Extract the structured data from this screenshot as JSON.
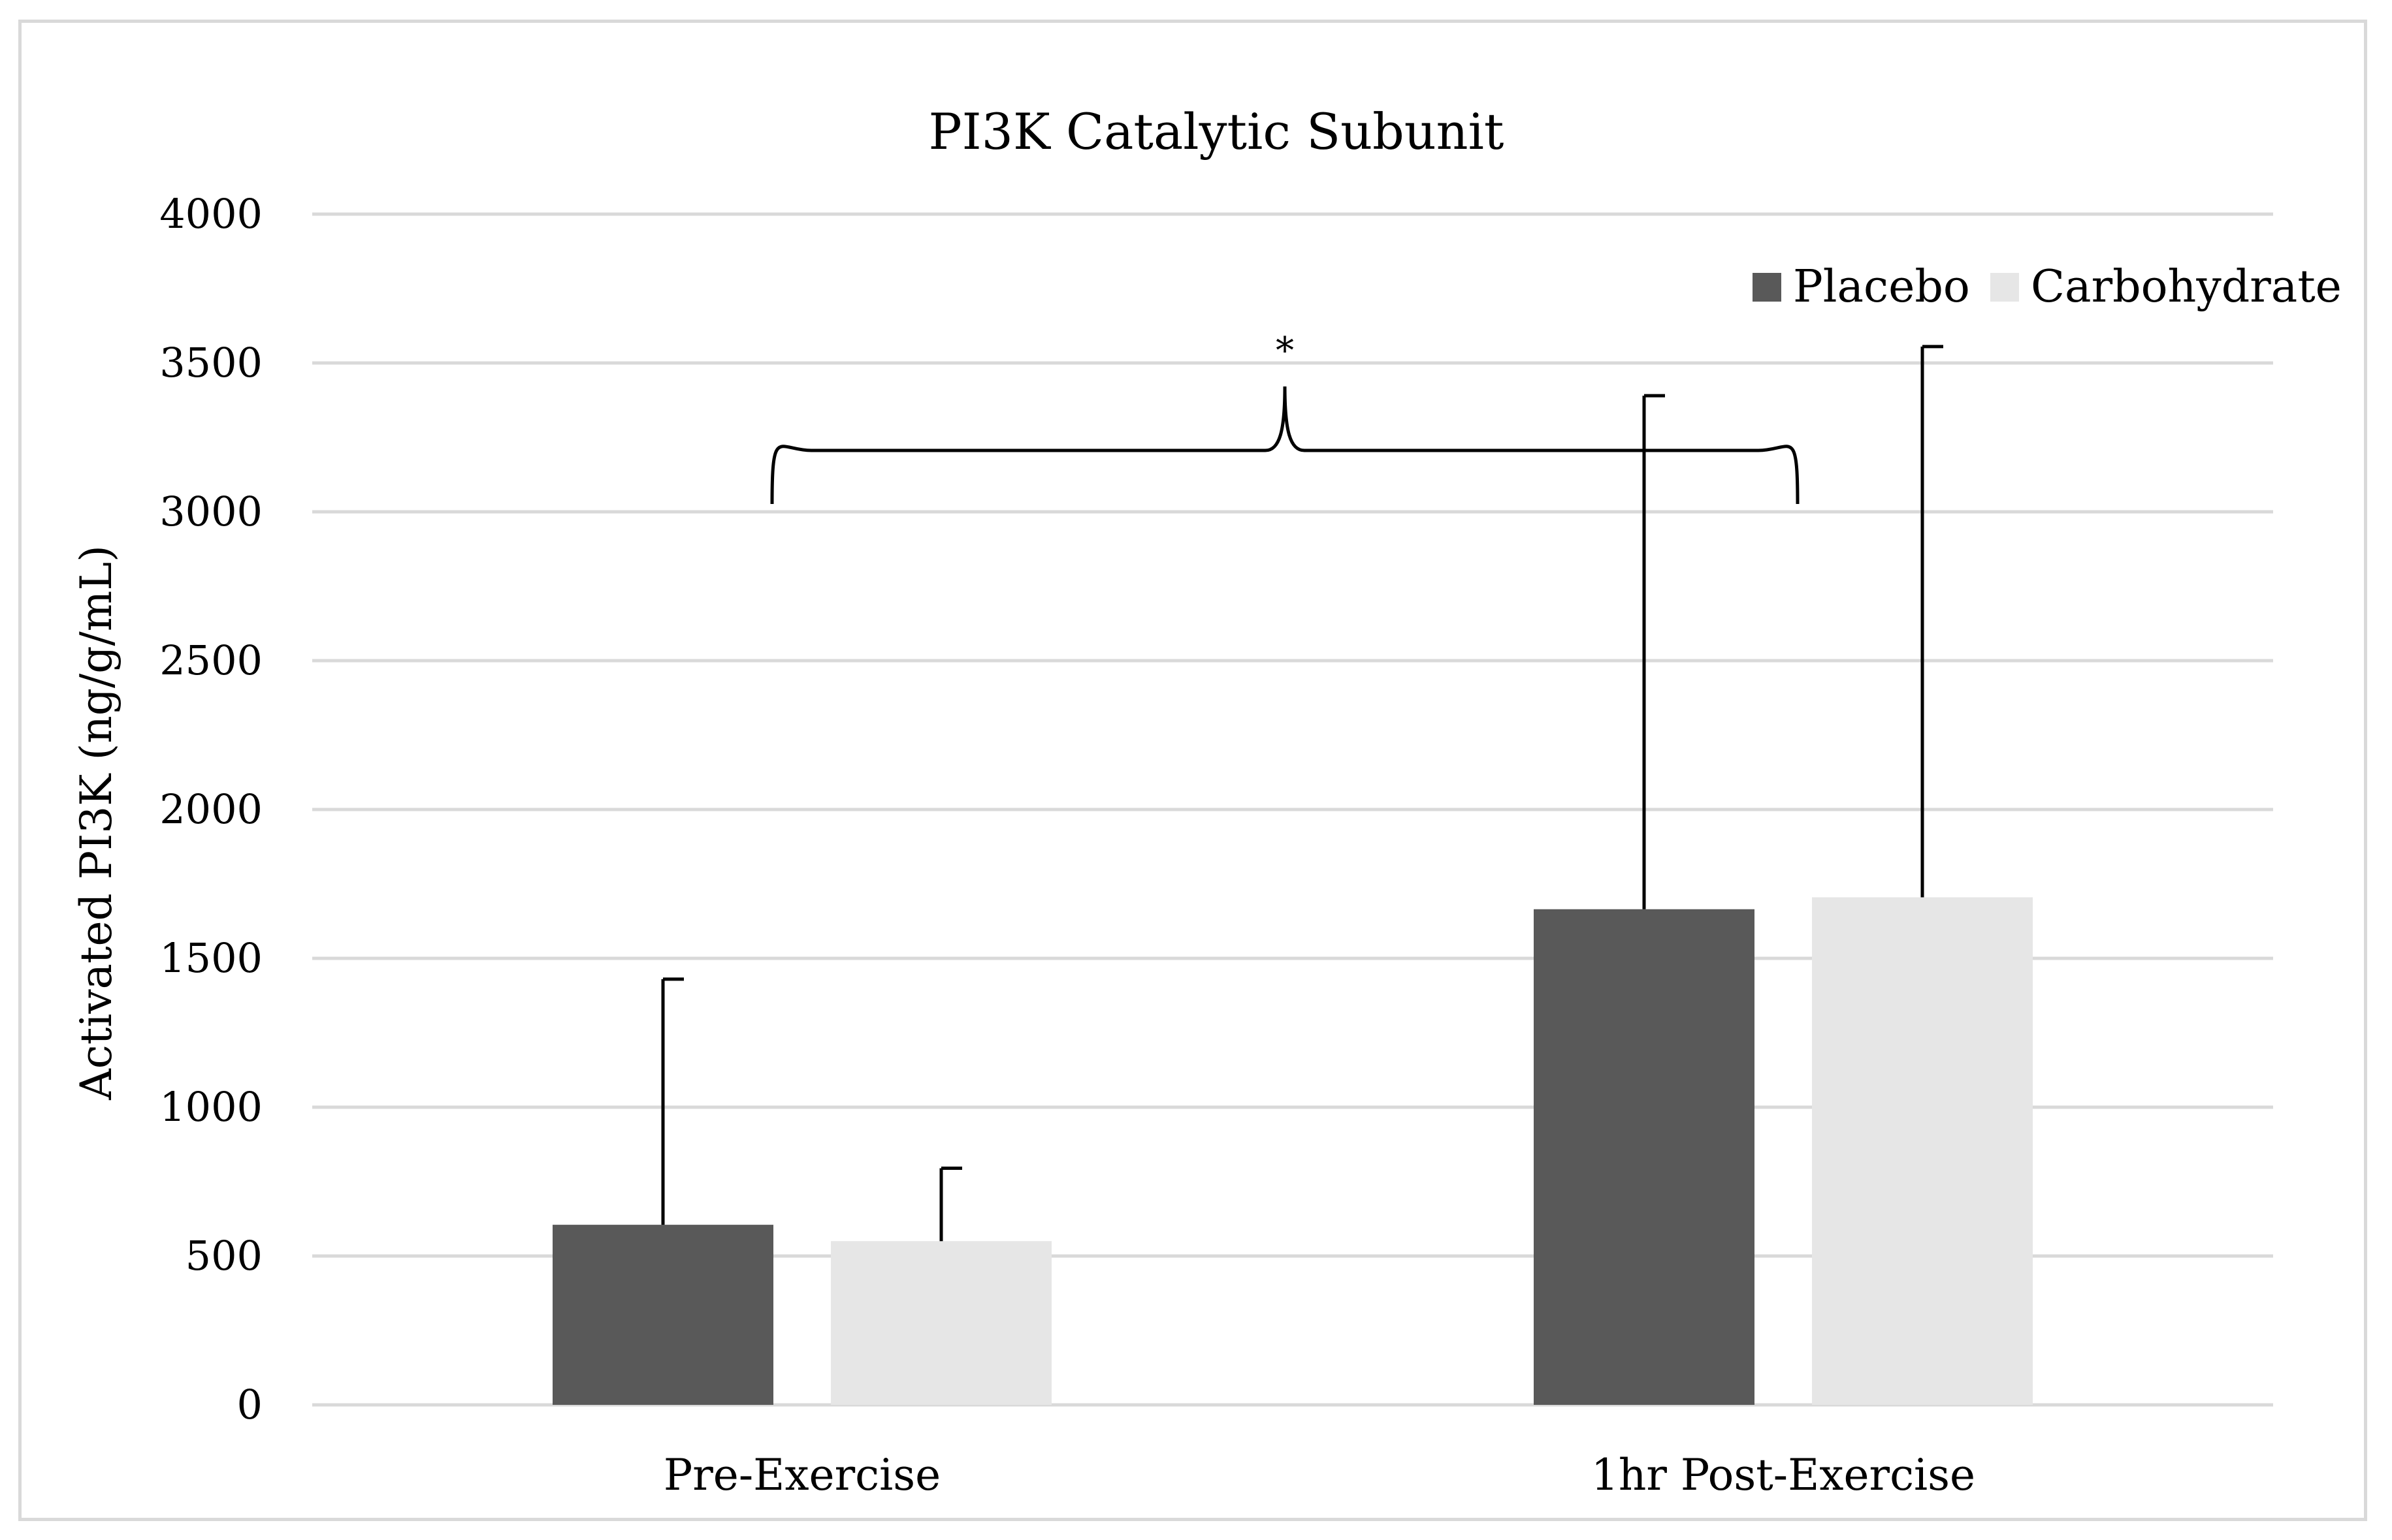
{
  "chart_data": {
    "type": "bar",
    "title": "PI3K Catalytic Subunit",
    "xlabel": "",
    "ylabel": "Activated PI3K (ng/g/mL)",
    "ylim": [
      0,
      4000
    ],
    "yticks": [
      0,
      500,
      1000,
      1500,
      2000,
      2500,
      3000,
      3500,
      4000
    ],
    "categories": [
      "Pre-Exercise",
      "1hr Post-Exercise"
    ],
    "series": [
      {
        "name": "Placebo",
        "color": "#595959",
        "values": [
          605,
          1665
        ],
        "error": [
          825,
          1725
        ]
      },
      {
        "name": "Carbohydrate",
        "color": "#e6e6e6",
        "values": [
          550,
          1705
        ],
        "error": [
          245,
          1850
        ]
      }
    ],
    "grid": true,
    "legend_position": "top-right",
    "annotations": [
      {
        "text": "*",
        "type": "bracket",
        "spans": [
          "Pre-Exercise",
          "1hr Post-Exercise"
        ]
      }
    ]
  },
  "colors": {
    "gridline": "#d9d9d9",
    "frame": "#d9d9d9",
    "errorbar": "#000000"
  }
}
